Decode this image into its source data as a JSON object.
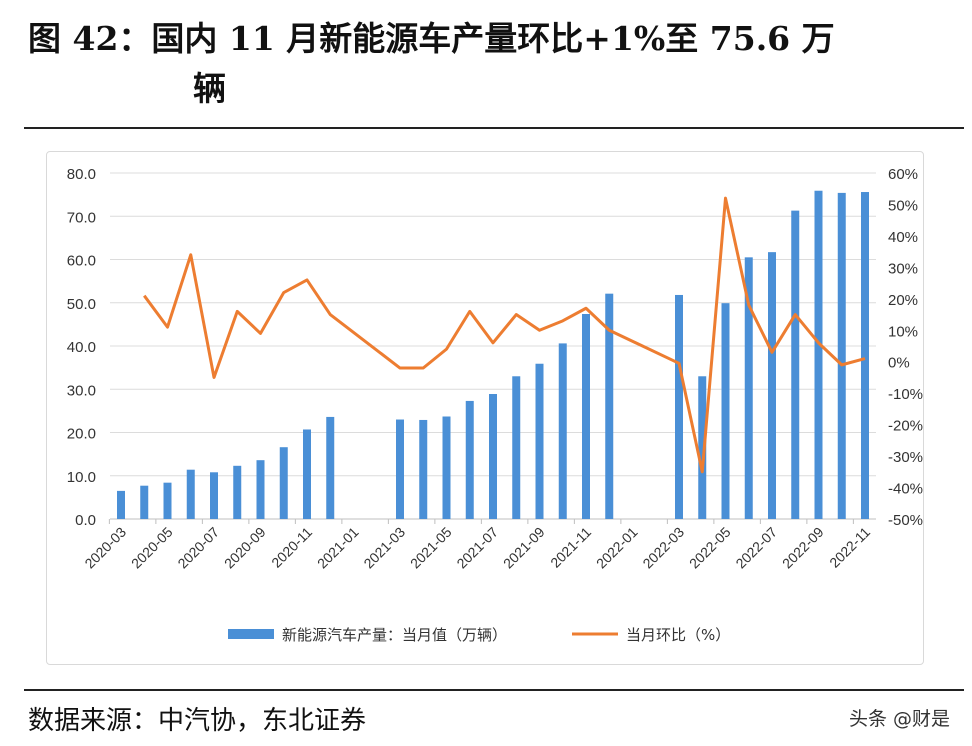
{
  "title_line1": "图 42：国内 11 月新能源车产量环比+1%至 75.6 万",
  "title_line2": "辆",
  "source": "数据来源：中汽协，东北证券",
  "watermark": "头条 @财是",
  "chart_data": {
    "type": "bar+line",
    "categories": [
      "2020-03",
      "2020-04",
      "2020-05",
      "2020-06",
      "2020-07",
      "2020-08",
      "2020-09",
      "2020-10",
      "2020-11",
      "2020-12",
      "2021-01",
      "2021-02",
      "2021-03",
      "2021-04",
      "2021-05",
      "2021-06",
      "2021-07",
      "2021-08",
      "2021-09",
      "2021-10",
      "2021-11",
      "2021-12",
      "2022-01",
      "2022-02",
      "2022-03",
      "2022-04",
      "2022-05",
      "2022-06",
      "2022-07",
      "2022-08",
      "2022-09",
      "2022-10",
      "2022-11"
    ],
    "tick_labels": [
      "2020-03",
      "2020-05",
      "2020-07",
      "2020-09",
      "2020-11",
      "2021-01",
      "2021-03",
      "2021-05",
      "2021-07",
      "2021-09",
      "2021-11",
      "2022-01",
      "2022-03",
      "2022-05",
      "2022-07",
      "2022-09",
      "2022-11"
    ],
    "series": [
      {
        "name": "新能源汽车产量：当月值（万辆）",
        "type": "bar",
        "axis": "left",
        "color": "#4a8fd6",
        "values": [
          6.5,
          7.7,
          8.4,
          11.4,
          10.8,
          12.3,
          13.6,
          16.6,
          20.7,
          23.6,
          null,
          null,
          23.0,
          22.9,
          23.7,
          27.3,
          28.9,
          33.0,
          35.9,
          40.6,
          47.4,
          52.1,
          null,
          null,
          51.8,
          33.0,
          49.9,
          60.5,
          61.7,
          71.3,
          75.9,
          75.4,
          75.6
        ]
      },
      {
        "name": "当月环比（%）",
        "type": "line",
        "axis": "right",
        "color": "#ed7d31",
        "values": [
          null,
          21,
          11,
          34,
          -5,
          16,
          9,
          22,
          26,
          15,
          null,
          null,
          -2,
          -2,
          4,
          16,
          6,
          15,
          10,
          13,
          17,
          10,
          null,
          null,
          -0.5,
          -35,
          52,
          18,
          3,
          15,
          6,
          -1,
          1
        ]
      }
    ],
    "y_left": {
      "min": 0,
      "max": 80,
      "step": 10,
      "ticks": [
        "0.0",
        "10.0",
        "20.0",
        "30.0",
        "40.0",
        "50.0",
        "60.0",
        "70.0",
        "80.0"
      ]
    },
    "y_right": {
      "min": -50,
      "max": 60,
      "step": 10,
      "ticks": [
        "-50%",
        "-40%",
        "-30%",
        "-20%",
        "-10%",
        "0%",
        "10%",
        "20%",
        "30%",
        "40%",
        "50%",
        "60%"
      ]
    },
    "grid": true,
    "legend": "bottom"
  }
}
